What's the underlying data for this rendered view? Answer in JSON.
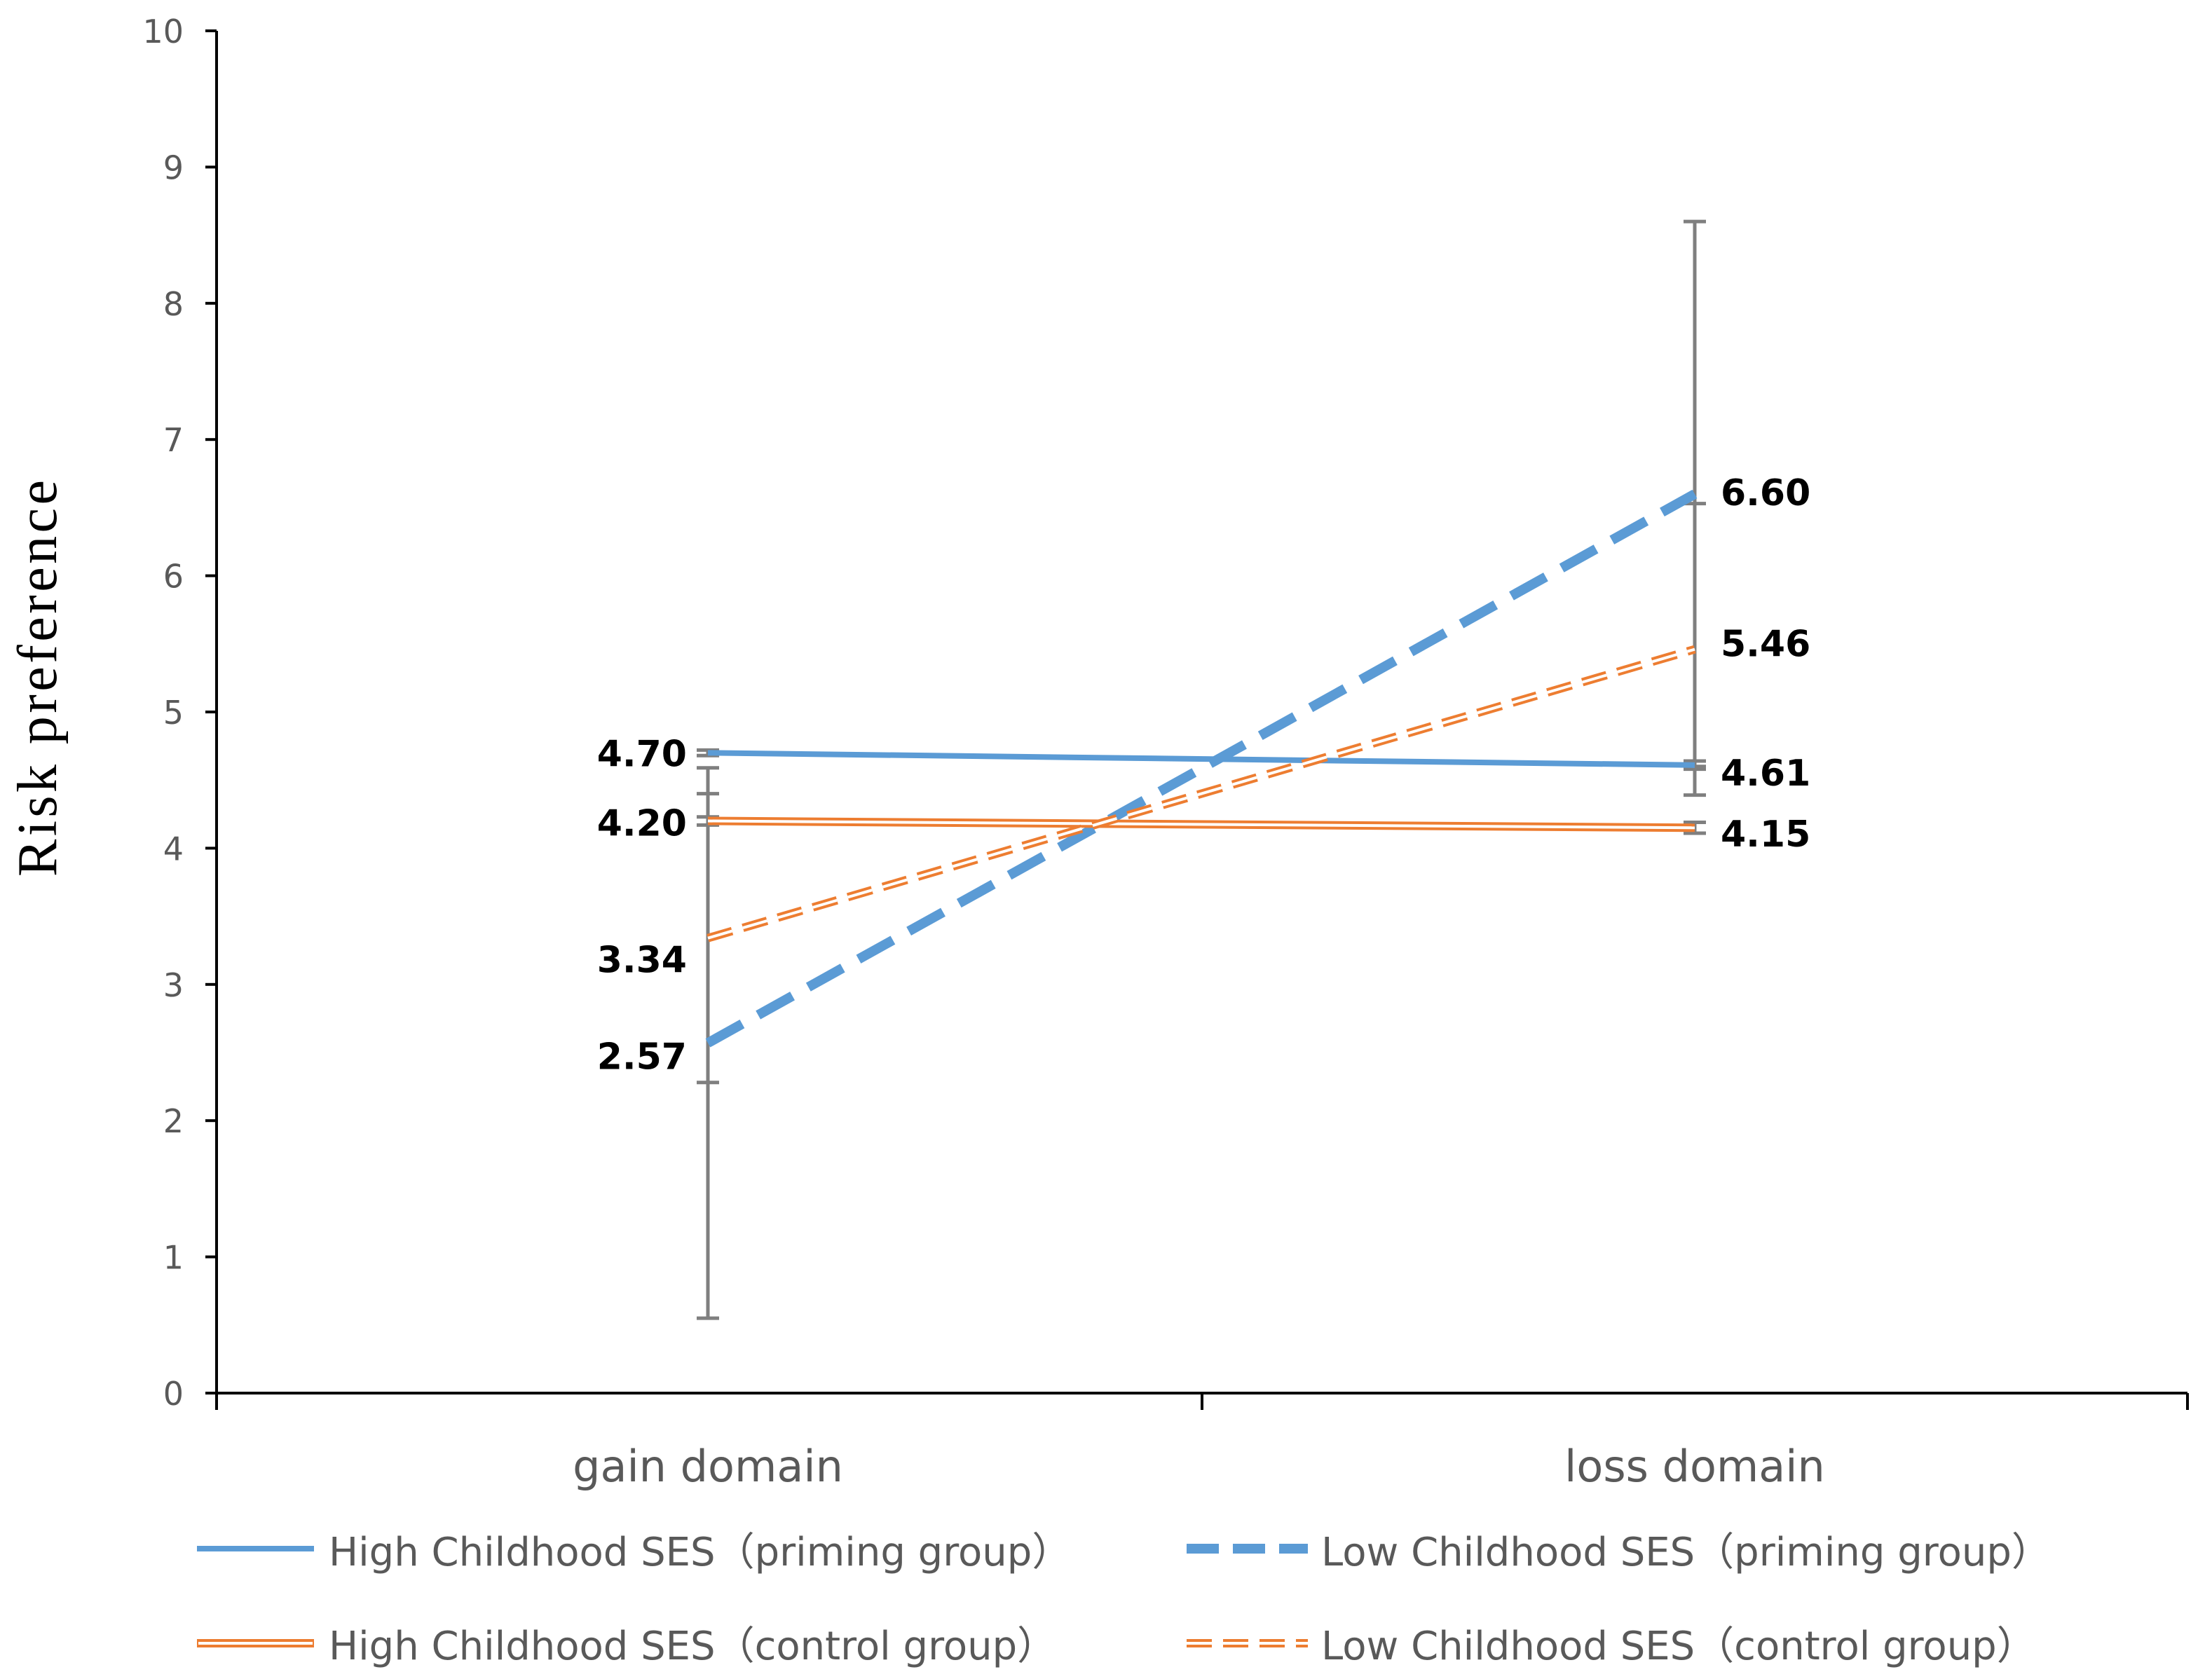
{
  "chart_data": {
    "type": "line",
    "ylabel": "Risk preference",
    "categories": [
      "gain domain",
      "loss domain"
    ],
    "ylim": [
      0,
      10
    ],
    "yticks": [
      0,
      1,
      2,
      3,
      4,
      5,
      6,
      7,
      8,
      9,
      10
    ],
    "grid": false,
    "error_bar_color": "#7F7F7F",
    "series": [
      {
        "name": "High Childhood SES（priming group）",
        "values": [
          4.7,
          4.61
        ],
        "labels": [
          "4.70",
          "4.61"
        ],
        "error": [
          0.02,
          0.03
        ],
        "color": "#5B9BD5"
      },
      {
        "name": "Low Childhood SES（priming group）",
        "values": [
          2.57,
          6.6
        ],
        "labels": [
          "2.57",
          "6.60"
        ],
        "error": [
          2.02,
          2.0
        ],
        "color": "#5B9BD5"
      },
      {
        "name": "High Childhood SES（control group）",
        "values": [
          4.2,
          4.15
        ],
        "labels": [
          "4.20",
          "4.15"
        ],
        "error": [
          0.03,
          0.04
        ],
        "color": "#ED7D31"
      },
      {
        "name": "Low Childhood SES（control group）",
        "values": [
          3.34,
          5.46
        ],
        "labels": [
          "3.34",
          "5.46"
        ],
        "error": [
          1.06,
          1.07
        ],
        "color": "#ED7D31"
      }
    ]
  }
}
